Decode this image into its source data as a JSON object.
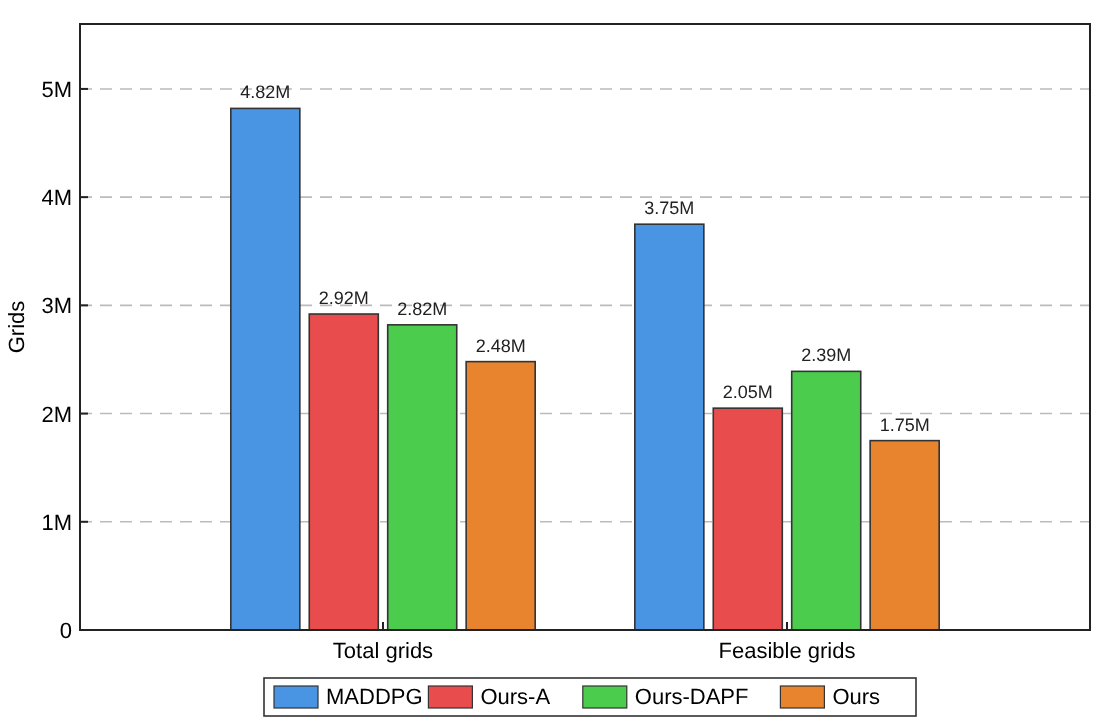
{
  "chart_data": {
    "type": "bar",
    "ylabel": "Grids",
    "categories": [
      "Total grids",
      "Feasible grids"
    ],
    "series": [
      {
        "name": "MADDPG",
        "color": "#4a94e4",
        "values": [
          4820000,
          3750000
        ],
        "value_labels": [
          "4.82M",
          "3.75M"
        ]
      },
      {
        "name": "Ours-A",
        "color": "#e84c4c",
        "values": [
          2920000,
          2050000
        ],
        "value_labels": [
          "2.92M",
          "2.05M"
        ]
      },
      {
        "name": "Ours-DAPF",
        "color": "#4ccc4c",
        "values": [
          2820000,
          2390000
        ],
        "value_labels": [
          "2.82M",
          "2.39M"
        ]
      },
      {
        "name": "Ours",
        "color": "#e8842e",
        "values": [
          2480000,
          1750000
        ],
        "value_labels": [
          "2.48M",
          "1.75M"
        ]
      }
    ],
    "ylim": [
      0,
      5600000
    ],
    "yticks": [
      {
        "value": 0,
        "label": "0"
      },
      {
        "value": 1000000,
        "label": "1M"
      },
      {
        "value": 2000000,
        "label": "2M"
      },
      {
        "value": 3000000,
        "label": "3M"
      },
      {
        "value": 4000000,
        "label": "4M"
      },
      {
        "value": 5000000,
        "label": "5M"
      }
    ],
    "grid": "y",
    "legend": "bottom"
  }
}
